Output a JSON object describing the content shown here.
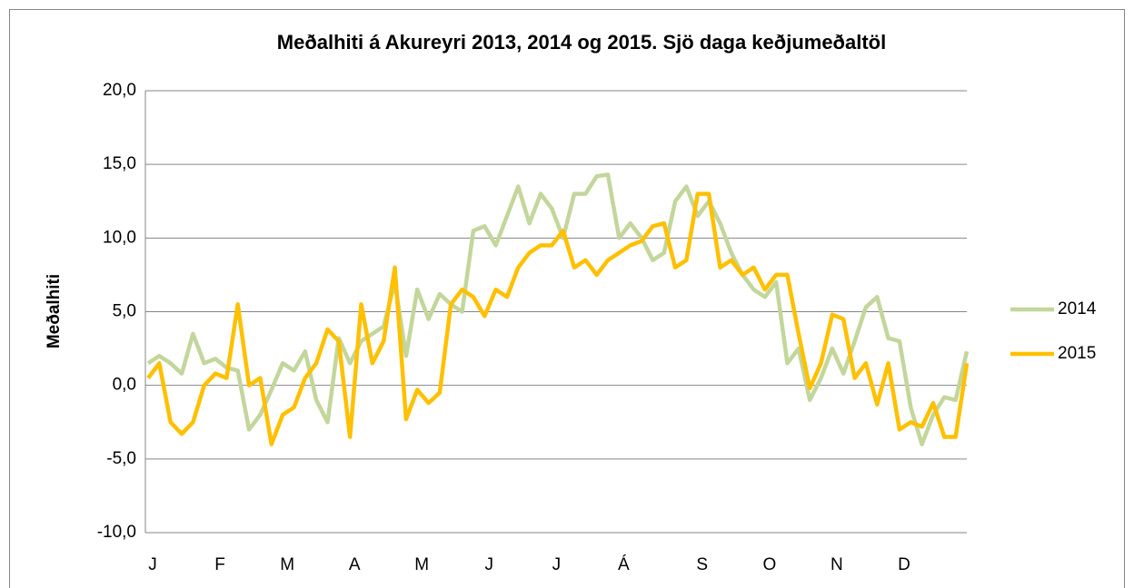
{
  "chart_data": {
    "type": "line",
    "title": "Meðalhiti á Akureyri 2013, 2014 og 2015. Sjö daga keðjumeðaltöl",
    "y_label": "Meðalhiti",
    "categories": [
      "J",
      null,
      null,
      null,
      null,
      null,
      "F",
      null,
      null,
      null,
      null,
      null,
      "M",
      null,
      null,
      null,
      null,
      null,
      "A",
      null,
      null,
      null,
      null,
      null,
      "M",
      null,
      null,
      null,
      null,
      null,
      "J",
      null,
      null,
      null,
      null,
      null,
      "J",
      null,
      null,
      null,
      null,
      null,
      "Á",
      null,
      null,
      null,
      null,
      null,
      null,
      "S",
      null,
      null,
      null,
      null,
      null,
      "O",
      null,
      null,
      null,
      null,
      null,
      "N",
      null,
      null,
      null,
      null,
      null,
      "D",
      null,
      null,
      null,
      null,
      null,
      null
    ],
    "series": [
      {
        "name": "2014",
        "color": "#c3d69b",
        "values": [
          1.5,
          2,
          1.5,
          0.8,
          3.5,
          1.5,
          1.8,
          1.2,
          1,
          -3,
          -2,
          -0.3,
          1.5,
          1,
          2.3,
          -1,
          -2.5,
          3.2,
          1.5,
          3,
          3.5,
          4,
          7,
          2,
          6.5,
          4.5,
          6.2,
          5.5,
          5,
          10.5,
          10.8,
          9.5,
          11.5,
          13.5,
          11,
          13,
          12,
          10,
          13,
          13,
          14.2,
          14.3,
          10,
          11,
          10,
          8.5,
          9,
          12.5,
          13.5,
          11.5,
          12.5,
          11,
          9,
          7.5,
          6.5,
          6,
          7,
          1.5,
          2.5,
          -1,
          0.5,
          2.5,
          0.8,
          3,
          5.3,
          6,
          3.2,
          3,
          -1.5,
          -4,
          -2,
          -0.8,
          -1,
          2.3
        ]
      },
      {
        "name": "2015",
        "color": "#ffc000",
        "values": [
          0.5,
          1.5,
          -2.5,
          -3.3,
          -2.5,
          0,
          0.8,
          0.5,
          5.5,
          0,
          0.5,
          -4,
          -2,
          -1.5,
          0.5,
          1.5,
          3.8,
          3,
          -3.5,
          5.5,
          1.5,
          3,
          8,
          -2.3,
          -0.3,
          -1.2,
          -0.5,
          5.5,
          6.5,
          6,
          4.7,
          6.5,
          6,
          8,
          9,
          9.5,
          9.5,
          10.5,
          8,
          8.5,
          7.5,
          8.5,
          9,
          9.5,
          9.8,
          10.8,
          11,
          8,
          8.5,
          13,
          13,
          8,
          8.5,
          7.5,
          8,
          6.5,
          7.5,
          7.5,
          3.5,
          -0.2,
          1.5,
          4.8,
          4.5,
          0.5,
          1.5,
          -1.3,
          1.5,
          -3,
          -2.5,
          -2.8,
          -1.2,
          -3.5,
          -3.5,
          1.5
        ]
      }
    ],
    "ylim": [
      -10,
      20
    ],
    "yticks": [
      {
        "value": -10,
        "label": "-10,0"
      },
      {
        "value": -5,
        "label": "-5,0"
      },
      {
        "value": 0,
        "label": "0,0"
      },
      {
        "value": 5,
        "label": "5,0"
      },
      {
        "value": 10,
        "label": "10,0"
      },
      {
        "value": 15,
        "label": "15,0"
      },
      {
        "value": 20,
        "label": "20,0"
      }
    ],
    "grid": true,
    "legend": "right"
  }
}
